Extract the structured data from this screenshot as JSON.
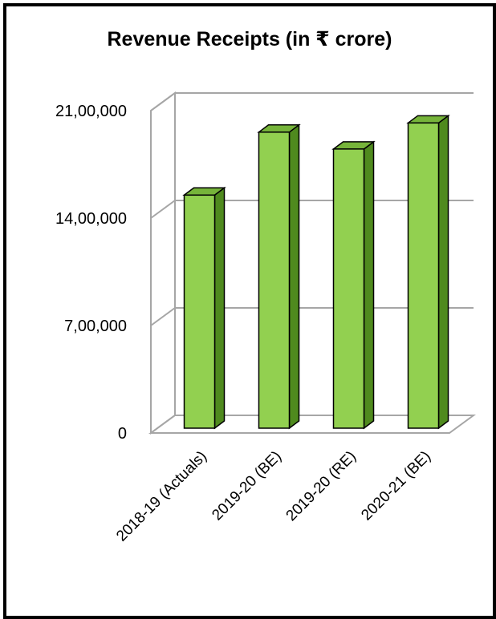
{
  "chart_data": {
    "type": "bar",
    "title": "Revenue Receipts (in ₹ crore)",
    "categories": [
      "2018-19 (Actuals)",
      "2019-20 (BE)",
      "2019-20 (RE)",
      "2020-21 (BE)"
    ],
    "values": [
      1550000,
      1960000,
      1850000,
      2020000
    ],
    "yticks": [
      "0",
      "7,00,000",
      "14,00,000",
      "21,00,000"
    ],
    "ytick_values": [
      0,
      700000,
      1400000,
      2100000
    ],
    "ylim": [
      0,
      2100000
    ],
    "grid": true,
    "legend": "none",
    "xlabel": "",
    "ylabel": "",
    "colors": {
      "bar_front": "#92d050",
      "bar_side": "#4f8a1e",
      "bar_top": "#76b43a",
      "grid": "#a6a6a6",
      "frame": "#000000"
    }
  }
}
